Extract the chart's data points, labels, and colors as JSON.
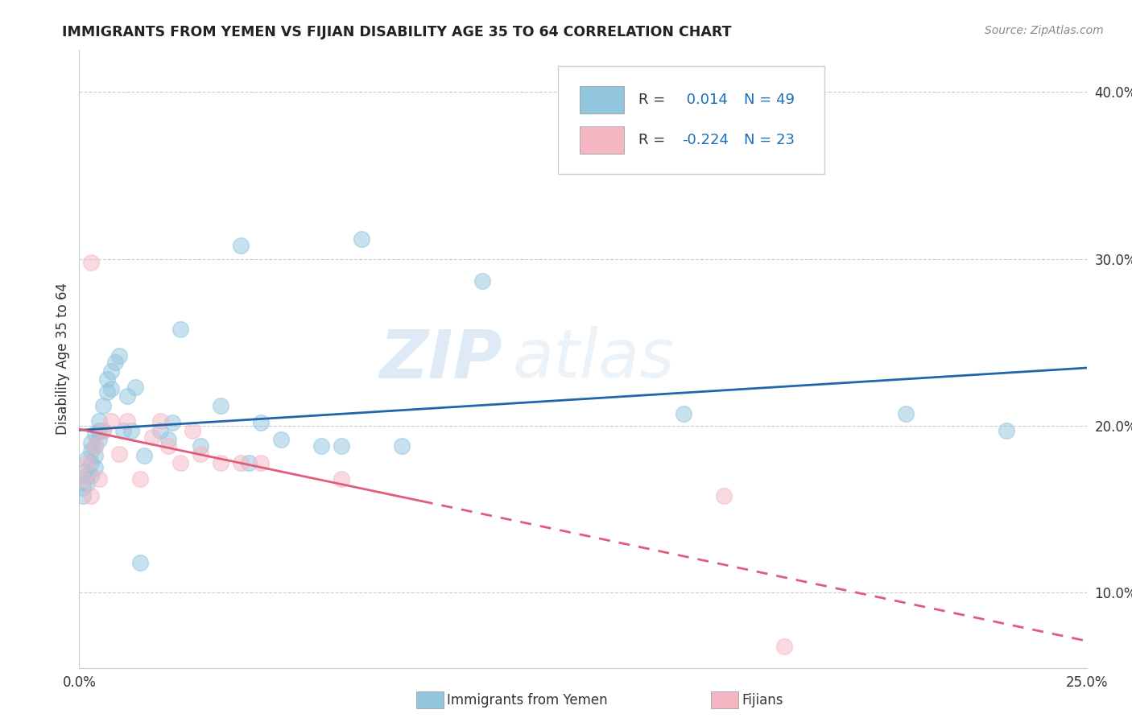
{
  "title": "IMMIGRANTS FROM YEMEN VS FIJIAN DISABILITY AGE 35 TO 64 CORRELATION CHART",
  "source": "Source: ZipAtlas.com",
  "ylabel_label": "Disability Age 35 to 64",
  "xlim": [
    0.0,
    0.25
  ],
  "ylim": [
    0.055,
    0.425
  ],
  "xticks": [
    0.0,
    0.05,
    0.1,
    0.15,
    0.2,
    0.25
  ],
  "yticks": [
    0.1,
    0.2,
    0.3,
    0.4
  ],
  "ytick_labels_right": [
    "10.0%",
    "20.0%",
    "30.0%",
    "40.0%"
  ],
  "xtick_labels": [
    "0.0%",
    "",
    "",
    "",
    "",
    "25.0%"
  ],
  "blue_color": "#92c5de",
  "pink_color": "#f4b6c2",
  "line_blue": "#2166ac",
  "line_pink": "#e05c7a",
  "watermark_zip": "ZIP",
  "watermark_atlas": "atlas",
  "legend_items": [
    {
      "color": "#92c5de",
      "r_label": "R = ",
      "r_val": " 0.014",
      "n_label": "N = 49"
    },
    {
      "color": "#f4b6c2",
      "r_label": "R = ",
      "r_val": "-0.224",
      "n_label": "N = 23"
    }
  ],
  "bottom_legend": [
    {
      "color": "#92c5de",
      "label": "Immigrants from Yemen"
    },
    {
      "color": "#f4b6c2",
      "label": "Fijians"
    }
  ],
  "blue_scatter_x": [
    0.001,
    0.001,
    0.002,
    0.002,
    0.003,
    0.003,
    0.003,
    0.004,
    0.004,
    0.004,
    0.005,
    0.005,
    0.005,
    0.006,
    0.006,
    0.007,
    0.007,
    0.008,
    0.008,
    0.009,
    0.01,
    0.011,
    0.012,
    0.013,
    0.014,
    0.015,
    0.016,
    0.02,
    0.022,
    0.023,
    0.025,
    0.03,
    0.035,
    0.04,
    0.042,
    0.045,
    0.05,
    0.06,
    0.065,
    0.07,
    0.08,
    0.1,
    0.15,
    0.205,
    0.23,
    0.001,
    0.002,
    0.003,
    0.004
  ],
  "blue_scatter_y": [
    0.163,
    0.172,
    0.18,
    0.17,
    0.178,
    0.185,
    0.19,
    0.195,
    0.188,
    0.182,
    0.192,
    0.197,
    0.203,
    0.212,
    0.197,
    0.22,
    0.228,
    0.233,
    0.222,
    0.238,
    0.242,
    0.197,
    0.218,
    0.197,
    0.223,
    0.118,
    0.182,
    0.197,
    0.192,
    0.202,
    0.258,
    0.188,
    0.212,
    0.308,
    0.178,
    0.202,
    0.192,
    0.188,
    0.188,
    0.312,
    0.188,
    0.287,
    0.207,
    0.207,
    0.197,
    0.158,
    0.165,
    0.17,
    0.175
  ],
  "pink_scatter_x": [
    0.001,
    0.002,
    0.003,
    0.004,
    0.005,
    0.006,
    0.008,
    0.01,
    0.012,
    0.015,
    0.018,
    0.02,
    0.022,
    0.025,
    0.028,
    0.03,
    0.035,
    0.04,
    0.045,
    0.065,
    0.16,
    0.175,
    0.003
  ],
  "pink_scatter_y": [
    0.168,
    0.178,
    0.298,
    0.188,
    0.168,
    0.197,
    0.203,
    0.183,
    0.203,
    0.168,
    0.193,
    0.203,
    0.188,
    0.178,
    0.197,
    0.183,
    0.178,
    0.178,
    0.178,
    0.168,
    0.158,
    0.068,
    0.158
  ]
}
